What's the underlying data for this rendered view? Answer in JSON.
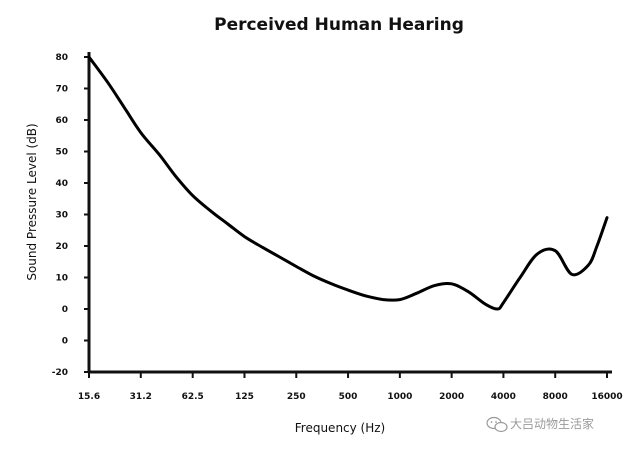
{
  "chart_data": {
    "type": "line",
    "title": "Perceived Human Hearing",
    "xlabel": "Frequency (Hz)",
    "ylabel": "Sound Pressure Level (dB)",
    "x_scale": "log2",
    "x_ticks": [
      "15.6",
      "31.2",
      "62.5",
      "125",
      "250",
      "500",
      "1000",
      "2000",
      "4000",
      "8000",
      "16000"
    ],
    "y_tick_labels": [
      "80",
      "70",
      "60",
      "50",
      "40",
      "30",
      "20",
      "10",
      "0",
      "0",
      "-20"
    ],
    "ylim": [
      -20,
      80
    ],
    "grid": false,
    "series": [
      {
        "x": [
          15.6,
          20,
          25,
          31.2,
          40,
          50,
          62.5,
          80,
          100,
          125,
          160,
          200,
          250,
          315,
          400,
          500,
          630,
          800,
          1000,
          1250,
          1600,
          2000,
          2500,
          3150,
          3700,
          4000,
          5000,
          6300,
          8000,
          10000,
          12500,
          14000,
          16000
        ],
        "y": [
          80,
          72,
          64,
          56,
          49,
          42,
          36,
          31,
          27,
          23,
          19.5,
          16.5,
          13.5,
          10.5,
          8,
          6,
          4.2,
          3,
          3,
          5,
          7.5,
          8,
          5.5,
          1.5,
          0,
          2,
          10,
          17.5,
          18.5,
          11,
          14,
          20,
          29
        ]
      }
    ]
  },
  "watermark": {
    "icon": "wechat-icon",
    "text": "大吕动物生活家"
  }
}
